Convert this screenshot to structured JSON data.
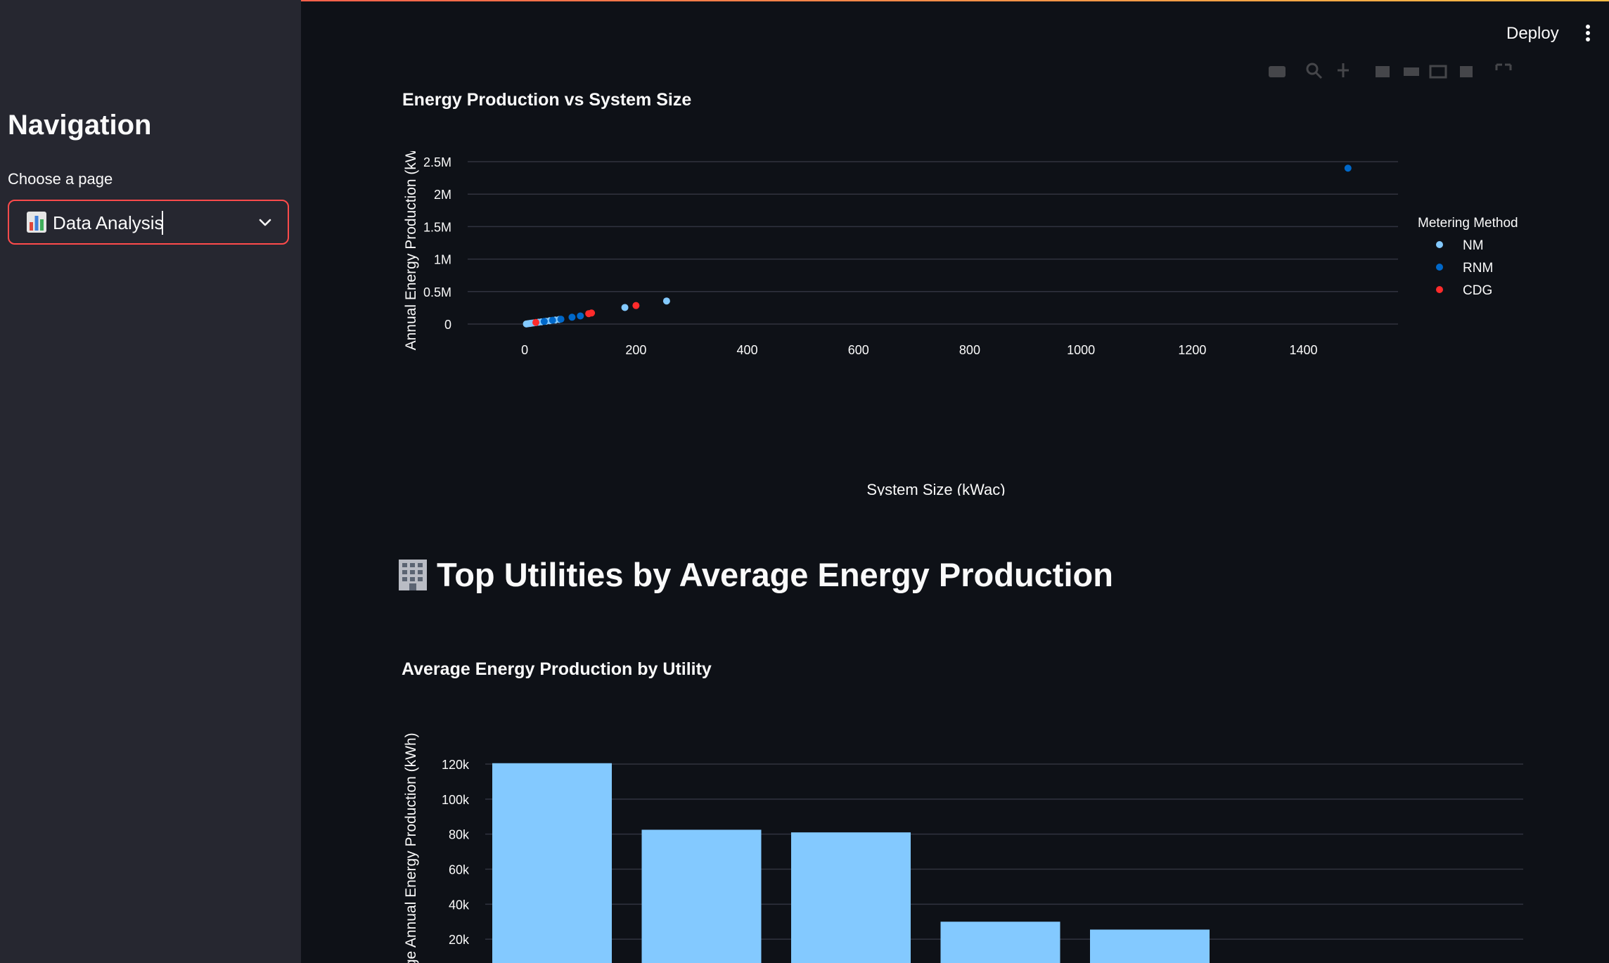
{
  "sidebar": {
    "title": "Navigation",
    "select_label": "Choose a page",
    "select_emoji": "bar-chart-icon",
    "select_value": "Data Analysis"
  },
  "header": {
    "deploy_label": "Deploy",
    "menu_icon": "vertical-ellipsis-icon"
  },
  "colors": {
    "accent": "#ff4b4b",
    "nm": "#83c9ff",
    "rnm": "#0068c9",
    "cdg": "#ff2b2b",
    "bar": "#83c9ff"
  },
  "main": {
    "section_heading": "Top Utilities by Average Energy Production",
    "section_icon": "office-building-icon"
  },
  "chart_data": [
    {
      "type": "scatter",
      "title": "Energy Production vs System Size",
      "xlabel": "System Size (kWac)",
      "ylabel": "Annual Energy Production (kWh)",
      "xlim": [
        -90,
        1570
      ],
      "ylim": [
        -150000,
        2650000
      ],
      "x_ticks": [
        0,
        200,
        400,
        600,
        800,
        1000,
        1200,
        1400
      ],
      "x_tick_labels": [
        "0",
        "200",
        "400",
        "600",
        "800",
        "1000",
        "1200",
        "1400"
      ],
      "y_ticks": [
        0,
        500000,
        1000000,
        1500000,
        2000000,
        2500000
      ],
      "y_tick_labels": [
        "0",
        "0.5M",
        "1M",
        "1.5M",
        "2M",
        "2.5M"
      ],
      "grid": true,
      "legend": {
        "title": "Metering Method",
        "position": "top-right"
      },
      "series": [
        {
          "name": "NM",
          "color": "#83c9ff",
          "points": [
            [
              3,
              2000
            ],
            [
              6,
              5000
            ],
            [
              9,
              9000
            ],
            [
              12,
              13000
            ],
            [
              16,
              18000
            ],
            [
              20,
              22000
            ],
            [
              25,
              28000
            ],
            [
              30,
              34000
            ],
            [
              38,
              42000
            ],
            [
              45,
              52000
            ],
            [
              55,
              62000
            ],
            [
              62,
              70000
            ],
            [
              180,
              255000
            ],
            [
              255,
              355000
            ]
          ]
        },
        {
          "name": "RNM",
          "color": "#0068c9",
          "points": [
            [
              35,
              40000
            ],
            [
              50,
              58000
            ],
            [
              65,
              75000
            ],
            [
              85,
              105000
            ],
            [
              100,
              125000
            ],
            [
              1480,
              2400000
            ]
          ]
        },
        {
          "name": "CDG",
          "color": "#ff2b2b",
          "points": [
            [
              20,
              25000
            ],
            [
              115,
              160000
            ],
            [
              120,
              170000
            ],
            [
              200,
              285000
            ]
          ]
        }
      ]
    },
    {
      "type": "bar",
      "title": "Average Energy Production by Utility",
      "ylabel": "Average Annual Energy Production (kWh)",
      "ylim": [
        0,
        126000
      ],
      "y_ticks": [
        20000,
        40000,
        60000,
        80000,
        100000,
        120000
      ],
      "y_tick_labels": [
        "20k",
        "40k",
        "60k",
        "80k",
        "100k",
        "120k"
      ],
      "grid": true,
      "color": "#83c9ff",
      "values": [
        120500,
        82500,
        81000,
        30000,
        25500
      ]
    }
  ]
}
